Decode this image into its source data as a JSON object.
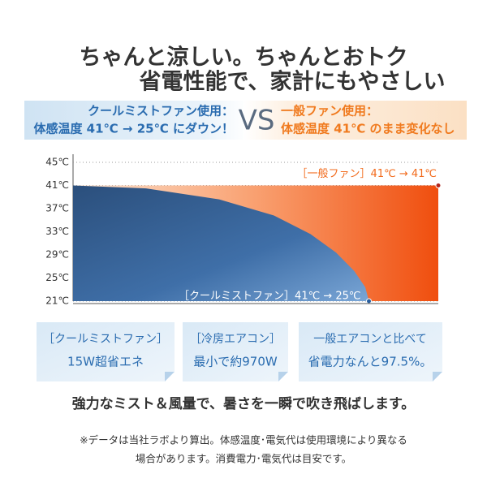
{
  "header": {
    "line1": "ちゃんと涼しい。ちゃんとおトク",
    "line2": "省電性能で、家計にもやさしい"
  },
  "banner": {
    "left_line1": "クールミストファン使用：",
    "left_line2": "体感温度 41℃ → 25℃ にダウン！",
    "vs": "VS",
    "right_line1": "一般ファン使用：",
    "right_line2": "体感温度 41℃ のまま変化なし"
  },
  "chart_data": {
    "type": "area",
    "ylim": [
      21,
      45
    ],
    "yticks": [
      {
        "value": 45,
        "label": "45℃"
      },
      {
        "value": 41,
        "label": "41℃"
      },
      {
        "value": 37,
        "label": "37℃"
      },
      {
        "value": 33,
        "label": "33℃"
      },
      {
        "value": 29,
        "label": "29℃"
      },
      {
        "value": 25,
        "label": "25℃"
      },
      {
        "value": 21,
        "label": "21℃"
      }
    ],
    "xlim": [
      0,
      100
    ],
    "grid": true,
    "series": [
      {
        "name": "［一般ファン］41℃ → 41℃",
        "color": "#f26a1b",
        "x": [
          0,
          100
        ],
        "values": [
          41,
          41
        ]
      },
      {
        "name": "［クールミストファン］41℃ → 25℃",
        "color": "#3f6fa8",
        "x": [
          0,
          20,
          40,
          55,
          65,
          72,
          77,
          80,
          81
        ],
        "values": [
          41,
          40.5,
          38.6,
          35.8,
          32.6,
          29.4,
          26.2,
          23.4,
          21
        ]
      }
    ]
  },
  "boxes": [
    {
      "line1": "［クールミストファン］",
      "line2": "15W超省エネ"
    },
    {
      "line1": "［冷房エアコン］",
      "line2": "最小で約970W"
    },
    {
      "line1": "一般エアコンと比べて",
      "line2": "省電力なんと97.5%。"
    }
  ],
  "tagline": "強力なミスト＆風量で、暑さを一瞬で吹き飛ばします。",
  "notes": [
    "※データは当社ラボより算出。体感温度･電気代は使用環境により異なる",
    "場合があります。消費電力･電気代は目安です。"
  ]
}
